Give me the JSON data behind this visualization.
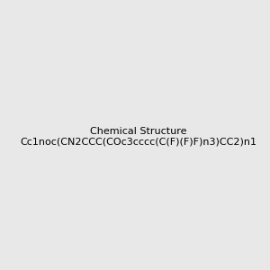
{
  "smiles": "Cc1noc(CN2CCC(COc3cccc(C(F)(F)F)n3)CC2)n1",
  "image_size": 300,
  "background_color": "#e8e8e8"
}
